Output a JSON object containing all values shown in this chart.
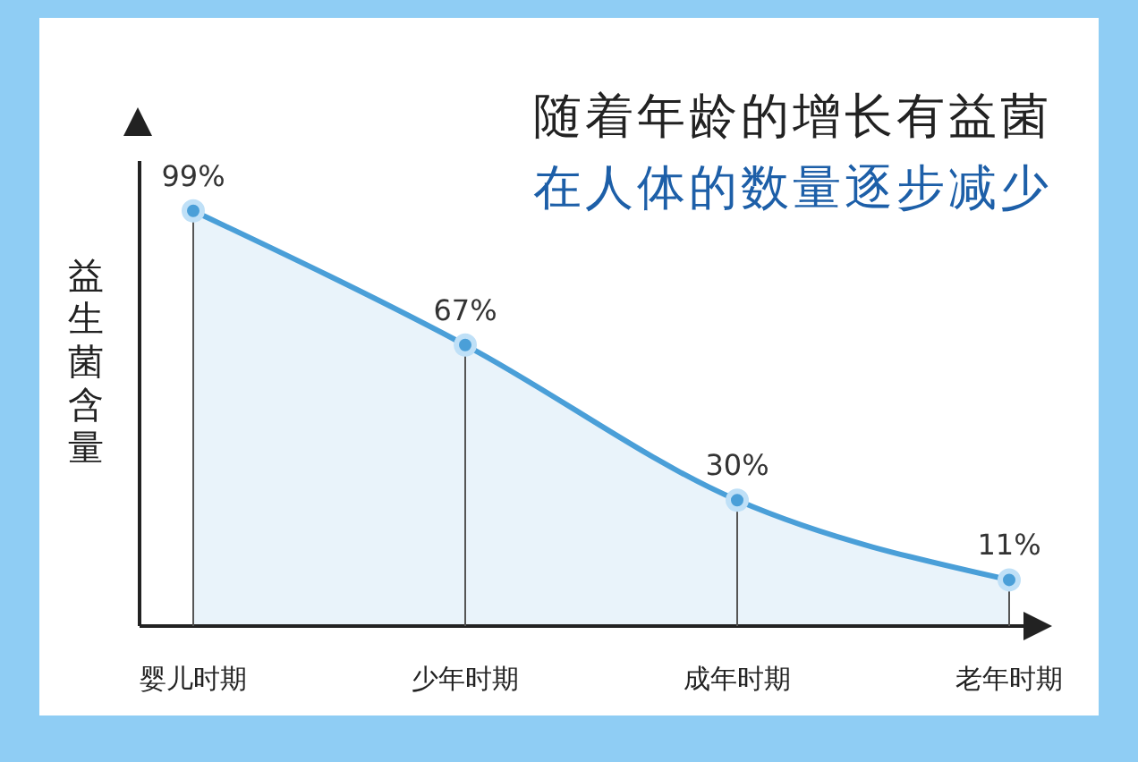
{
  "chart_data": {
    "type": "area",
    "title": "随着年龄的增长有益菌",
    "subtitle": "在人体的数量逐步减少",
    "ylabel": "益生菌含量",
    "categories": [
      "婴儿时期",
      "少年时期",
      "成年时期",
      "老年时期"
    ],
    "values": [
      99,
      67,
      30,
      11
    ],
    "value_labels": [
      "99%",
      "67%",
      "30%",
      "11%"
    ],
    "color": "#4a9fd8",
    "relative": false
  }
}
